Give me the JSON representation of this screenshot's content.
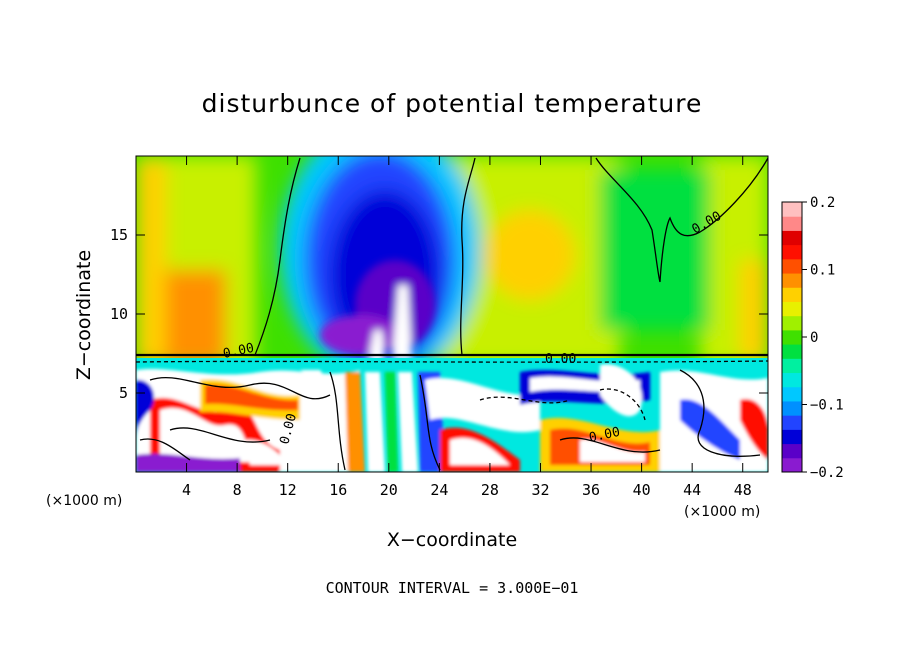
{
  "chart_data": {
    "type": "heatmap",
    "title": "disturbunce of potential temperature",
    "xlabel": "X−coordinate",
    "ylabel": "Z−coordinate",
    "x_unit_left": "(×1000 m)",
    "x_unit_right": "(×1000 m)",
    "xlim": [
      0,
      50
    ],
    "ylim": [
      0,
      20
    ],
    "x_ticks": [
      "4",
      "8",
      "12",
      "16",
      "20",
      "24",
      "28",
      "32",
      "36",
      "40",
      "44",
      "48"
    ],
    "y_ticks": [
      "5",
      "10",
      "15"
    ],
    "colorbar": {
      "range": [
        -0.2,
        0.2
      ],
      "ticks": [
        "0.2",
        "0.1",
        "0",
        "−0.1",
        "−0.2"
      ],
      "tick_values": [
        0.2,
        0.1,
        0,
        -0.1,
        -0.2
      ],
      "colors": [
        "#8a1bd0",
        "#5a00c8",
        "#0000d8",
        "#2244ff",
        "#0090ff",
        "#00c8ff",
        "#00e8e0",
        "#00f0a0",
        "#00e040",
        "#40e000",
        "#a0f000",
        "#e8f000",
        "#ffd000",
        "#ff9000",
        "#ff5000",
        "#ff1000",
        "#e00000",
        "#ff8888",
        "#ffc0c0"
      ]
    },
    "contour_labels": [
      "0.00",
      "0.00",
      "0.00",
      "0.00",
      "0.00"
    ],
    "footnote": "CONTOUR INTERVAL = 3.000E−01"
  }
}
